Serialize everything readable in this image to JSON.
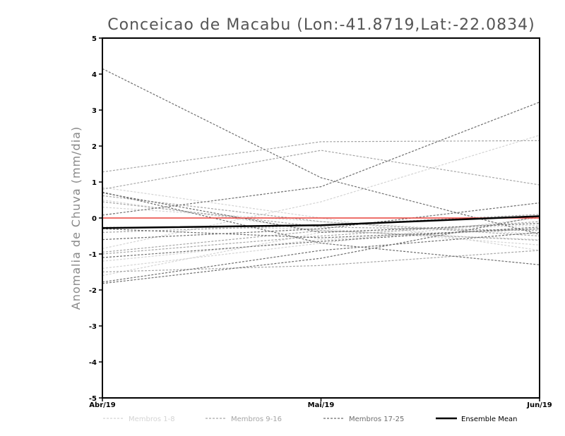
{
  "chart_data": {
    "type": "line",
    "title": "Conceicao de Macabu (Lon:-41.8719,Lat:-22.0834)",
    "ylabel": "Anomalia de Chuva (mm/dia)",
    "xlabel": "",
    "x": [
      "Abr/19",
      "Mai/19",
      "Jun/19"
    ],
    "yticks": [
      "-5",
      "-4",
      "-3",
      "-2",
      "-1",
      "0",
      "1",
      "2",
      "3",
      "4",
      "5"
    ],
    "ylim": [
      -5,
      5
    ],
    "grid": false,
    "zero_line_color": "#e8403a",
    "legend": [
      {
        "label": "Membros 1-8",
        "color": "#d4d4d4",
        "dashed": true
      },
      {
        "label": "Membros 9-16",
        "color": "#a6a6a6",
        "dashed": true
      },
      {
        "label": "Membros 17-25",
        "color": "#6e6e6e",
        "dashed": true
      },
      {
        "label": "Ensemble Mean",
        "color": "#000000",
        "dashed": false
      }
    ],
    "series": [
      {
        "group": 0,
        "values": [
          0.85,
          0.0,
          -0.9
        ]
      },
      {
        "group": 0,
        "values": [
          0.5,
          -0.35,
          -0.6
        ]
      },
      {
        "group": 0,
        "values": [
          -0.85,
          0.45,
          2.3
        ]
      },
      {
        "group": 0,
        "values": [
          -1.6,
          -0.4,
          -0.2
        ]
      },
      {
        "group": 0,
        "values": [
          0.3,
          -0.1,
          -0.45
        ]
      },
      {
        "group": 0,
        "values": [
          -1.2,
          -0.6,
          -0.3
        ]
      },
      {
        "group": 0,
        "values": [
          -0.25,
          -0.3,
          -0.75
        ]
      },
      {
        "group": 0,
        "values": [
          -1.4,
          -0.7,
          0.0
        ]
      },
      {
        "group": 1,
        "values": [
          1.28,
          2.12,
          2.15
        ]
      },
      {
        "group": 1,
        "values": [
          0.8,
          1.88,
          0.92
        ]
      },
      {
        "group": 1,
        "values": [
          0.62,
          -0.1,
          -0.5
        ]
      },
      {
        "group": 1,
        "values": [
          -1.5,
          -1.32,
          -0.9
        ]
      },
      {
        "group": 1,
        "values": [
          -0.95,
          -0.35,
          -0.62
        ]
      },
      {
        "group": 1,
        "values": [
          0.45,
          -0.25,
          -0.35
        ]
      },
      {
        "group": 1,
        "values": [
          -1.0,
          -0.5,
          -0.1
        ]
      },
      {
        "group": 1,
        "values": [
          -0.4,
          -0.2,
          0.1
        ]
      },
      {
        "group": 2,
        "values": [
          4.15,
          1.12,
          -0.45
        ]
      },
      {
        "group": 2,
        "values": [
          0.08,
          0.87,
          3.22
        ]
      },
      {
        "group": 2,
        "values": [
          0.72,
          -0.7,
          -1.3
        ]
      },
      {
        "group": 2,
        "values": [
          -1.82,
          -1.12,
          0.05
        ]
      },
      {
        "group": 2,
        "values": [
          -0.6,
          -0.3,
          0.42
        ]
      },
      {
        "group": 2,
        "values": [
          -1.1,
          -0.65,
          -0.25
        ]
      },
      {
        "group": 2,
        "values": [
          -1.78,
          -0.9,
          -0.4
        ]
      },
      {
        "group": 2,
        "values": [
          -0.3,
          -0.55,
          -0.3
        ]
      },
      {
        "group": 2,
        "values": [
          0.7,
          -0.4,
          -0.15
        ]
      }
    ],
    "mean": {
      "name": "Ensemble Mean",
      "values": [
        -0.28,
        -0.2,
        0.05
      ]
    }
  }
}
